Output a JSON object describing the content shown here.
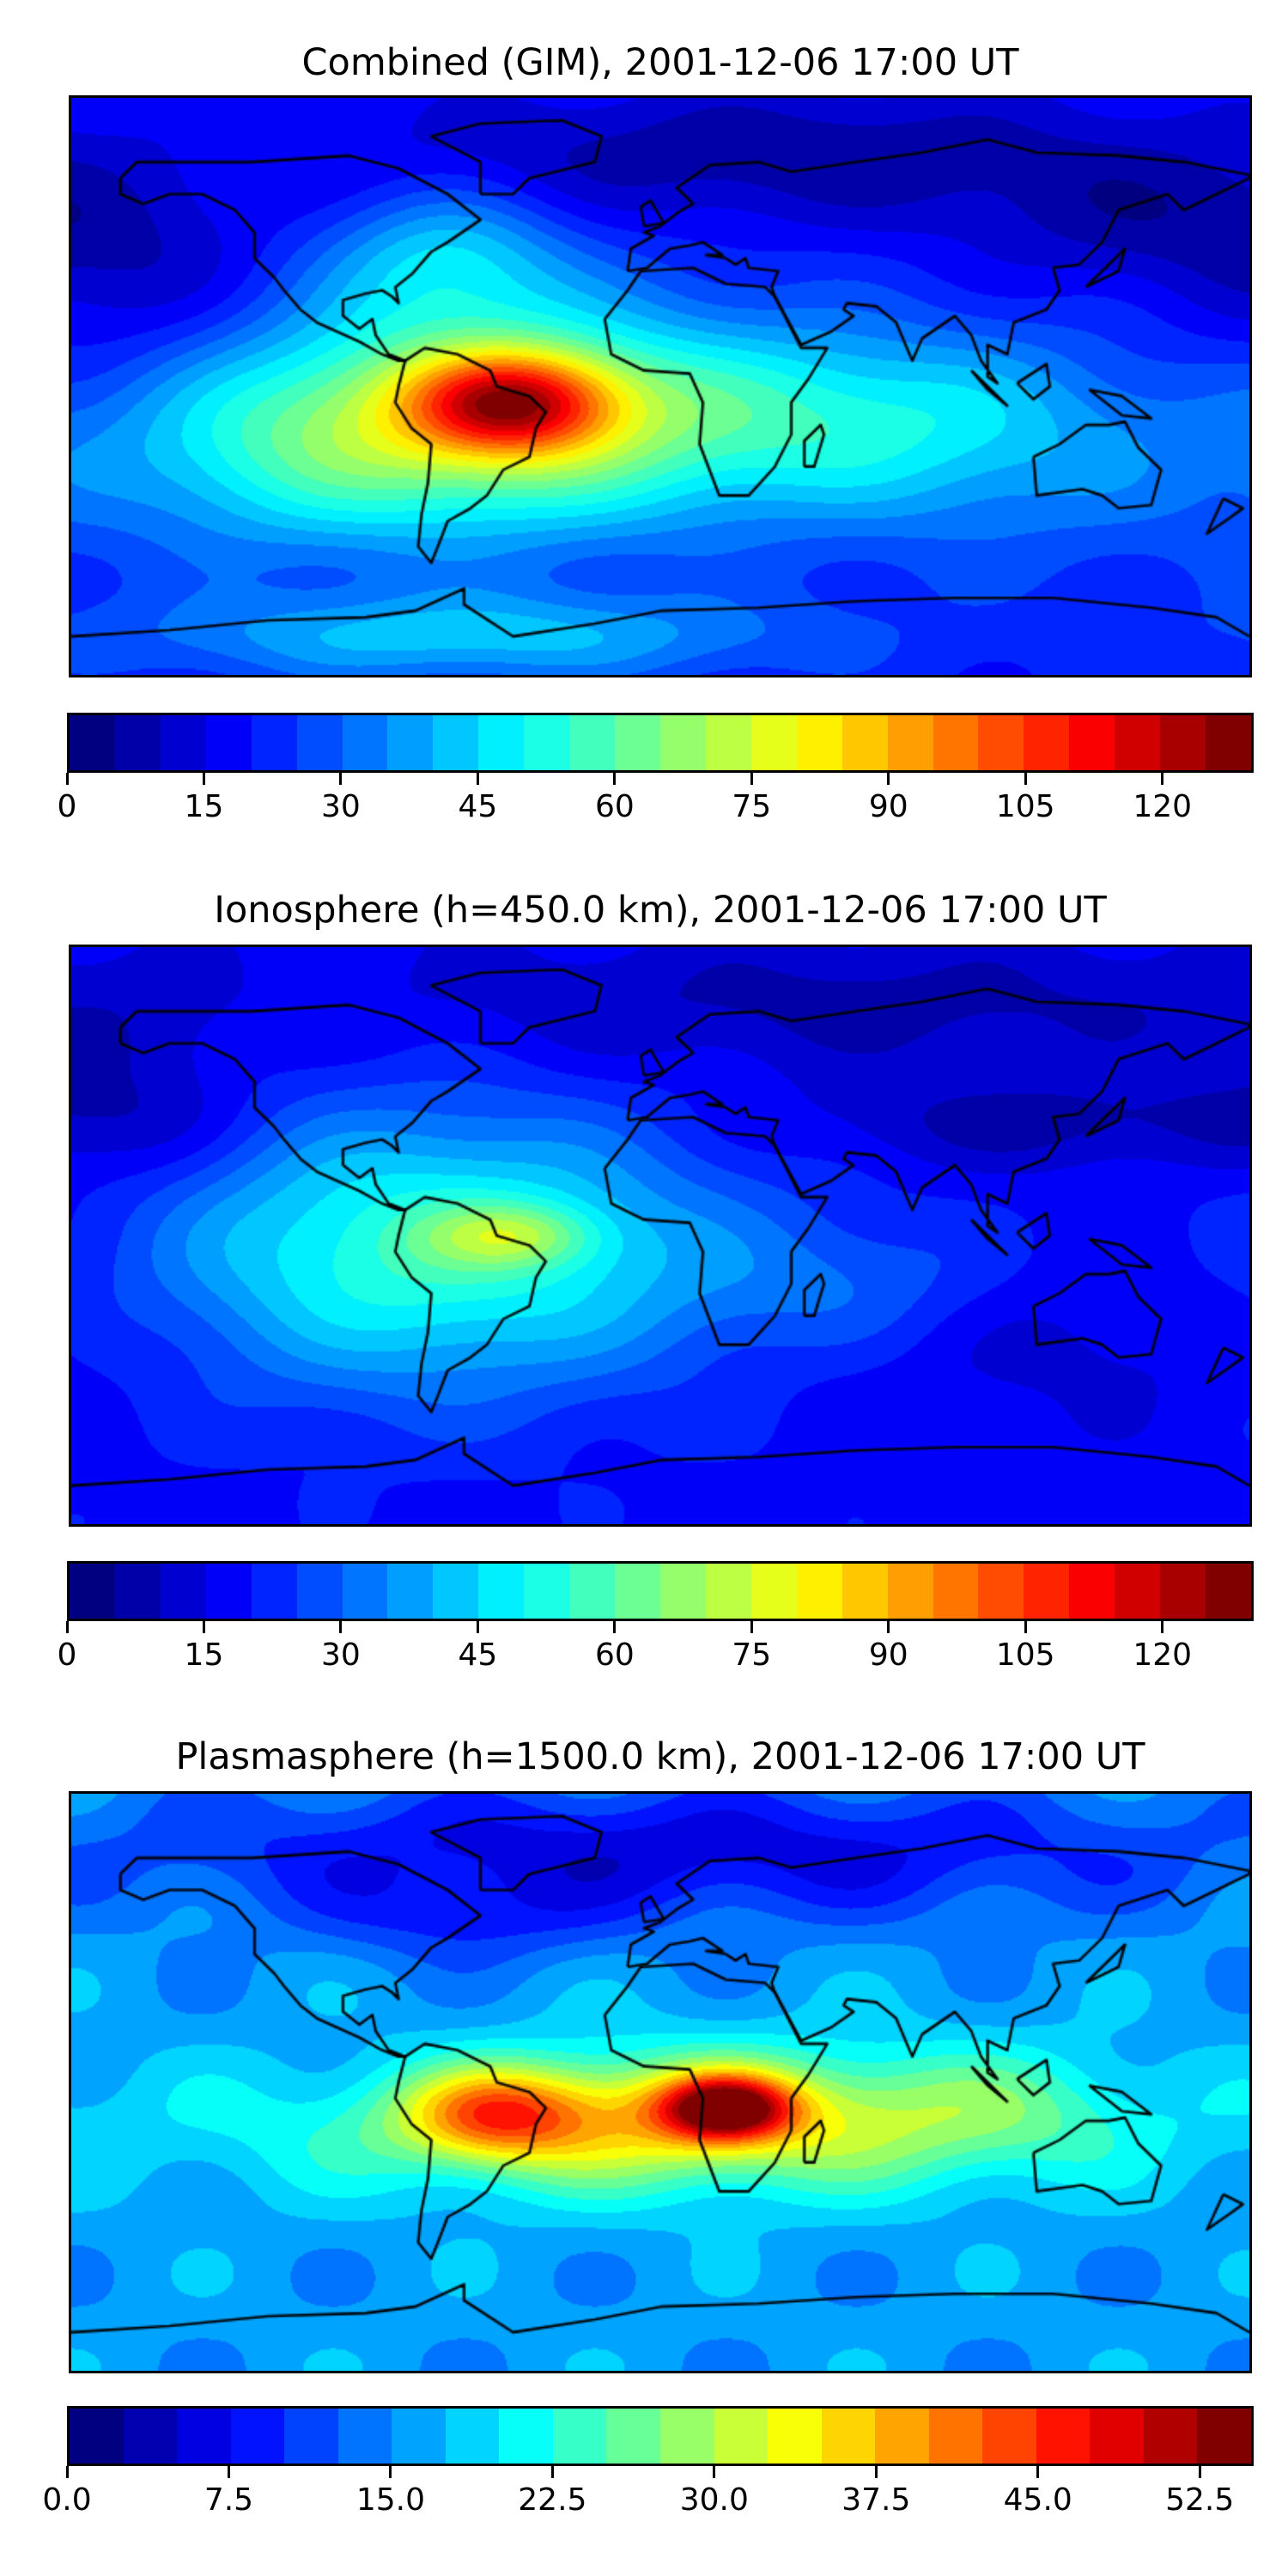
{
  "chart_data": [
    {
      "type": "heatmap",
      "title": "Combined (GIM), 2001-12-06 17:00 UT",
      "projection": "equirectangular",
      "lon_range": [
        -180,
        180
      ],
      "lat_range": [
        -90,
        90
      ],
      "colormap": "jet",
      "levels": {
        "min": 0,
        "max": 130,
        "step": 5
      },
      "colorbar_ticks": [
        0,
        15,
        30,
        45,
        60,
        75,
        90,
        105,
        120
      ],
      "colorbar_tick_labels": [
        "0",
        "15",
        "30",
        "45",
        "60",
        "75",
        "90",
        "105",
        "120"
      ],
      "field_base": 20,
      "field_components": [
        {
          "lon": -45,
          "lat": -5,
          "slon": 22,
          "slat": 11,
          "amp": 55
        },
        {
          "lon": -55,
          "lat": -10,
          "slon": 55,
          "slat": 25,
          "amp": 50
        },
        {
          "lon": -120,
          "lat": -20,
          "slon": 40,
          "slat": 22,
          "amp": 15
        },
        {
          "lon": -65,
          "lat": 40,
          "slon": 25,
          "slat": 15,
          "amp": 22
        },
        {
          "lon": 60,
          "lat": -10,
          "slon": 55,
          "slat": 20,
          "amp": 25
        },
        {
          "lon": 120,
          "lat": -30,
          "slon": 60,
          "slat": 25,
          "amp": 8
        },
        {
          "lon": 40,
          "lat": 72,
          "slon": 90,
          "slat": 15,
          "amp": -14
        },
        {
          "lon": 150,
          "lat": 50,
          "slon": 40,
          "slat": 15,
          "amp": -10
        },
        {
          "lon": -160,
          "lat": 30,
          "slon": 30,
          "slat": 25,
          "amp": -9
        },
        {
          "lon": -60,
          "lat": -78,
          "slon": 70,
          "slat": 10,
          "amp": 22
        }
      ]
    },
    {
      "type": "heatmap",
      "title": "Ionosphere  (h=450.0 km), 2001-12-06 17:00 UT",
      "projection": "equirectangular",
      "lon_range": [
        -180,
        180
      ],
      "lat_range": [
        -90,
        90
      ],
      "colormap": "jet",
      "levels": {
        "min": 0,
        "max": 130,
        "step": 5
      },
      "colorbar_ticks": [
        0,
        15,
        30,
        45,
        60,
        75,
        90,
        105,
        120
      ],
      "colorbar_tick_labels": [
        "0",
        "15",
        "30",
        "45",
        "60",
        "75",
        "90",
        "105",
        "120"
      ],
      "field_base": 18,
      "field_components": [
        {
          "lon": -45,
          "lat": 0,
          "slon": 18,
          "slat": 7,
          "amp": 22
        },
        {
          "lon": -70,
          "lat": -5,
          "slon": 60,
          "slat": 30,
          "amp": 38
        },
        {
          "lon": 60,
          "lat": -15,
          "slon": 40,
          "slat": 15,
          "amp": 10
        },
        {
          "lon": 60,
          "lat": 72,
          "slon": 100,
          "slat": 15,
          "amp": -10
        },
        {
          "lon": 120,
          "lat": 35,
          "slon": 60,
          "slat": 10,
          "amp": -10
        },
        {
          "lon": 130,
          "lat": -30,
          "slon": 50,
          "slat": 20,
          "amp": -6
        },
        {
          "lon": -160,
          "lat": 40,
          "slon": 25,
          "slat": 25,
          "amp": -8
        }
      ]
    },
    {
      "type": "heatmap",
      "title": "Plasmasphere (h=1500.0 km), 2001-12-06 17:00 UT",
      "projection": "equirectangular",
      "lon_range": [
        -180,
        180
      ],
      "lat_range": [
        -90,
        90
      ],
      "colormap": "jet",
      "levels": {
        "min": 0,
        "max": 55,
        "step": 2.5
      },
      "colorbar_ticks": [
        0,
        7.5,
        15,
        22.5,
        30,
        37.5,
        45,
        52.5
      ],
      "colorbar_tick_labels": [
        "0.0",
        "7.5",
        "15.0",
        "22.5",
        "30.0",
        "37.5",
        "45.0",
        "52.5"
      ],
      "field_base": 16,
      "field_components": [
        {
          "lon": 20,
          "lat": -8,
          "slon": 14,
          "slat": 7,
          "amp": 28
        },
        {
          "lon": 10,
          "lat": -10,
          "slon": 45,
          "slat": 15,
          "amp": 12
        },
        {
          "lon": -50,
          "lat": -10,
          "slon": 20,
          "slat": 10,
          "amp": 18
        },
        {
          "lon": -30,
          "lat": -15,
          "slon": 90,
          "slat": 15,
          "amp": 8
        },
        {
          "lon": 100,
          "lat": -10,
          "slon": 40,
          "slat": 15,
          "amp": 8
        },
        {
          "lon": 0,
          "lat": 72,
          "slon": 120,
          "slat": 15,
          "amp": -10
        },
        {
          "lon": -60,
          "lat": 50,
          "slon": 30,
          "slat": 10,
          "amp": -5
        }
      ]
    }
  ]
}
